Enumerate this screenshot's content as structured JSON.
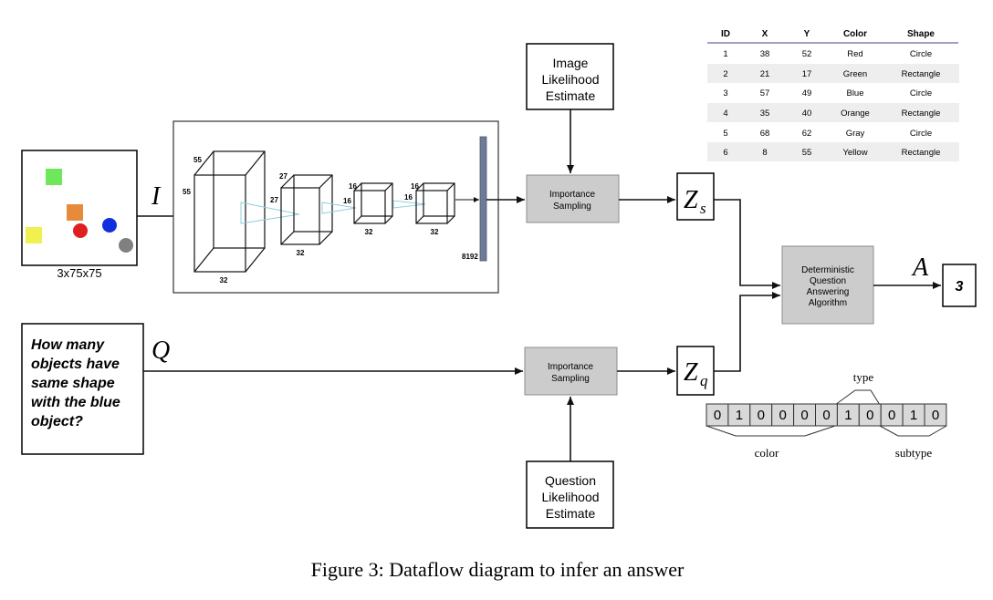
{
  "input_image": {
    "size_label": "3x75x75",
    "colors": {
      "green": "#6ee85a",
      "orange": "#e68a3c",
      "red": "#e02020",
      "blue": "#1030e0",
      "yellow": "#f0f050",
      "gray": "#808080"
    }
  },
  "symbols": {
    "I": "I",
    "Q": "Q",
    "Zs_base": "Z",
    "Zs_sub": "s",
    "Zq_base": "Z",
    "Zq_sub": "q",
    "A": "A"
  },
  "cnn": {
    "layer1": {
      "height": "55",
      "width": "55",
      "depth": "32"
    },
    "layer2": {
      "height": "27",
      "width": "27",
      "depth": "32"
    },
    "layer3": {
      "height": "16",
      "width": "16",
      "depth": "32"
    },
    "layer4": {
      "height": "16",
      "width": "16",
      "depth": "32"
    },
    "fc": "8192"
  },
  "boxes": {
    "image_likelihood": [
      "Image",
      "Likelihood",
      "Estimate"
    ],
    "importance_top": [
      "Importance",
      "Sampling"
    ],
    "importance_bottom": [
      "Importance",
      "Sampling"
    ],
    "question_likelihood": [
      "Question",
      "Likelihood",
      "Estimate"
    ],
    "algorithm": [
      "Deterministic",
      "Question",
      "Answering",
      "Algorithm"
    ],
    "answer": "3"
  },
  "question": [
    "How many",
    "objects have",
    "same shape",
    "with the blue",
    "object?"
  ],
  "table": {
    "headers": [
      "ID",
      "X",
      "Y",
      "Color",
      "Shape"
    ],
    "rows": [
      [
        "1",
        "38",
        "52",
        "Red",
        "Circle"
      ],
      [
        "2",
        "21",
        "17",
        "Green",
        "Rectangle"
      ],
      [
        "3",
        "57",
        "49",
        "Blue",
        "Circle"
      ],
      [
        "4",
        "35",
        "40",
        "Orange",
        "Rectangle"
      ],
      [
        "5",
        "68",
        "62",
        "Gray",
        "Circle"
      ],
      [
        "6",
        "8",
        "55",
        "Yellow",
        "Rectangle"
      ]
    ],
    "stripe_color": "#eeeeee",
    "header_rule_color": "#8080b0"
  },
  "encoding": {
    "bits": [
      "0",
      "1",
      "0",
      "0",
      "0",
      "0",
      "1",
      "0",
      "0",
      "1",
      "0"
    ],
    "cell_color": "#d9d9d9",
    "type_label": "type",
    "color_label": "color",
    "subtype_label": "subtype"
  },
  "caption": "Figure 3: Dataflow diagram to infer an answer"
}
